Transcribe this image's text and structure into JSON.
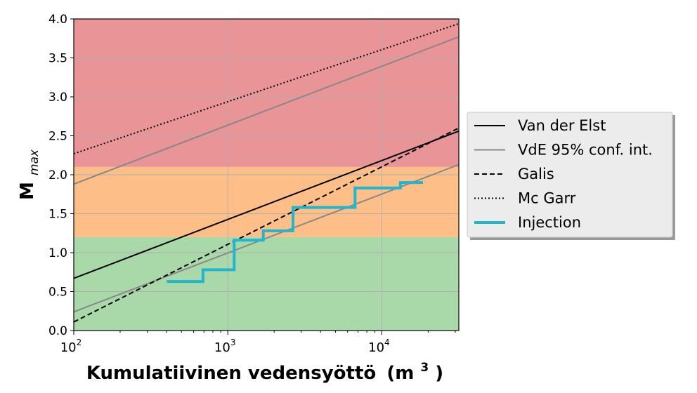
{
  "chart_data": {
    "type": "line",
    "xscale": "log",
    "xlim": [
      100,
      31623
    ],
    "ylim": [
      0.0,
      4.0
    ],
    "yticks": [
      0.0,
      0.5,
      1.0,
      1.5,
      2.0,
      2.5,
      3.0,
      3.5,
      4.0
    ],
    "ytick_labels": [
      "0.0",
      "0.5",
      "1.0",
      "1.5",
      "2.0",
      "2.5",
      "3.0",
      "3.5",
      "4.0"
    ],
    "xticks": [
      100,
      1000,
      10000
    ],
    "xtick_labels": [
      {
        "base": "10",
        "exp": "2"
      },
      {
        "base": "10",
        "exp": "3"
      },
      {
        "base": "10",
        "exp": "4"
      }
    ],
    "xlabel": {
      "main": "Kumulatiivinen vedensyöttö",
      "unit_open": "(m",
      "unit_exp": "3",
      "unit_close": ")"
    },
    "ylabel": {
      "main": "M",
      "sub": "max"
    },
    "grid": true,
    "legend_position": "right, outside plot",
    "bands": [
      {
        "y0": 0.0,
        "y1": 1.2,
        "color": "#a9d9a9"
      },
      {
        "y0": 1.2,
        "y1": 2.1,
        "color": "#fdbf87"
      },
      {
        "y0": 2.1,
        "y1": 4.0,
        "color": "#e99497"
      }
    ],
    "series": [
      {
        "name": "Van der Elst",
        "style": "solid",
        "color": "#000000",
        "width": 2,
        "x": [
          100,
          31623
        ],
        "y": [
          0.67,
          2.56
        ]
      },
      {
        "name": "VdE 95% conf. int.",
        "style": "solid",
        "color": "#888888",
        "width": 2,
        "x": [
          100,
          31623
        ],
        "y": [
          1.88,
          3.77
        ],
        "x2": [
          100,
          31623
        ],
        "y2": [
          0.24,
          2.13
        ]
      },
      {
        "name": "Galis",
        "style": "dashed",
        "color": "#000000",
        "width": 2,
        "x": [
          100,
          31623
        ],
        "y": [
          0.11,
          2.6
        ]
      },
      {
        "name": "Mc Garr",
        "style": "dotted",
        "color": "#000000",
        "width": 2,
        "x": [
          100,
          31623
        ],
        "y": [
          2.27,
          3.94
        ]
      },
      {
        "name": "Injection",
        "style": "step",
        "color": "#21b6cf",
        "width": 4,
        "x": [
          400,
          690,
          690,
          1100,
          1100,
          1700,
          1700,
          2650,
          2650,
          6700,
          6700,
          13200,
          13200,
          18500
        ],
        "y": [
          0.63,
          0.63,
          0.78,
          0.78,
          1.16,
          1.16,
          1.28,
          1.28,
          1.58,
          1.58,
          1.83,
          1.83,
          1.9,
          1.9
        ]
      }
    ]
  }
}
